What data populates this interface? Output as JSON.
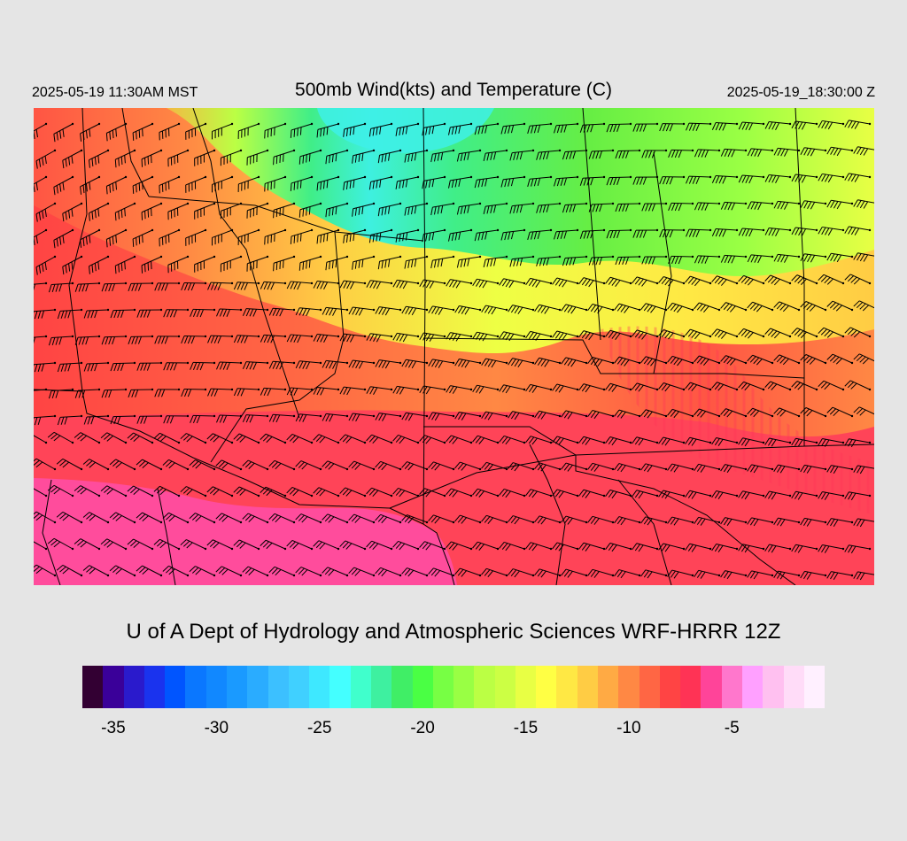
{
  "header": {
    "valid_local": "2025-05-19 11:30AM MST",
    "title": "500mb Wind(kts) and Temperature (C)",
    "valid_utc": "2025-05-19_18:30:00 Z"
  },
  "footer": {
    "model_credit": "U of A Dept of Hydrology and Atmospheric Sciences WRF-HRRR 12Z"
  },
  "colorbar": {
    "colors": [
      "#330033",
      "#3a0099",
      "#2a1acc",
      "#1a33ee",
      "#0055ff",
      "#0a77ff",
      "#1188ff",
      "#1a9aff",
      "#2aacff",
      "#3cc0ff",
      "#40d0ff",
      "#3ee8ff",
      "#44ffff",
      "#40ffcc",
      "#3ef0a0",
      "#40ee66",
      "#4aff44",
      "#77ff44",
      "#99ff44",
      "#bbff44",
      "#ccff44",
      "#e8ff44",
      "#ffff44",
      "#ffe844",
      "#ffcc44",
      "#ffaa44",
      "#ff8844",
      "#ff6644",
      "#ff4444",
      "#ff3355",
      "#ff4499",
      "#ff77cc",
      "#ffa0ff",
      "#ffc0f0",
      "#ffdcf8",
      "#fff0ff"
    ],
    "tick_labels": [
      "-35",
      "-30",
      "-25",
      "-20",
      "-15",
      "-10",
      "-5"
    ],
    "tick_values": [
      -35,
      -30,
      -25,
      -20,
      -15,
      -10,
      -5
    ],
    "range": [
      -36,
      -1
    ]
  }
}
